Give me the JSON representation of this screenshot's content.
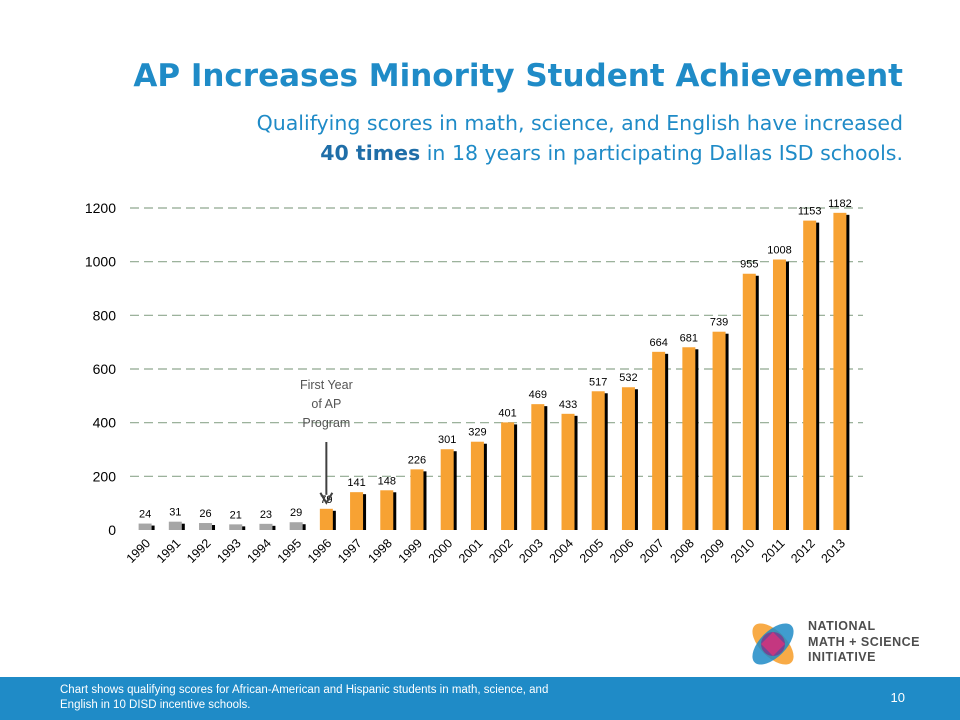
{
  "slide": {
    "title": "AP Increases Minority Student Achievement",
    "subtitle_line1": "Qualifying scores in math, science, and English have increased",
    "subtitle_bold": "40 times",
    "subtitle_line2_rest": " in 18 years in participating Dallas ISD schools.",
    "footnote": "Chart shows qualifying scores for African-American and Hispanic students in math, science, and English in 10 DISD incentive schools.",
    "page_number": "10",
    "logo_text": [
      "NATIONAL",
      "MATH + SCIENCE",
      "INITIATIVE"
    ]
  },
  "colors": {
    "accent": "#1f8bc7",
    "bar_pre_program": "#a6a6a6",
    "bar_program": "#f7a233",
    "bar_shadow": "#000000",
    "gridline": "#8fa88f"
  },
  "chart_data": {
    "type": "bar",
    "categories": [
      "1990",
      "1991",
      "1992",
      "1993",
      "1994",
      "1995",
      "1996",
      "1997",
      "1998",
      "1999",
      "2000",
      "2001",
      "2002",
      "2003",
      "2004",
      "2005",
      "2006",
      "2007",
      "2008",
      "2009",
      "2010",
      "2011",
      "2012",
      "2013"
    ],
    "values": [
      24,
      31,
      26,
      21,
      23,
      29,
      79,
      141,
      148,
      226,
      301,
      329,
      401,
      469,
      433,
      517,
      532,
      664,
      681,
      739,
      955,
      1008,
      1153,
      1182
    ],
    "ylim": [
      0,
      1200
    ],
    "yticks": [
      0,
      200,
      400,
      600,
      800,
      1000,
      1200
    ],
    "grid": true,
    "gridline_style": "dashed",
    "pre_program_count": 6,
    "annotation": {
      "text_lines": [
        "First Year",
        "of AP",
        "Program"
      ],
      "points_to": "1996"
    }
  }
}
